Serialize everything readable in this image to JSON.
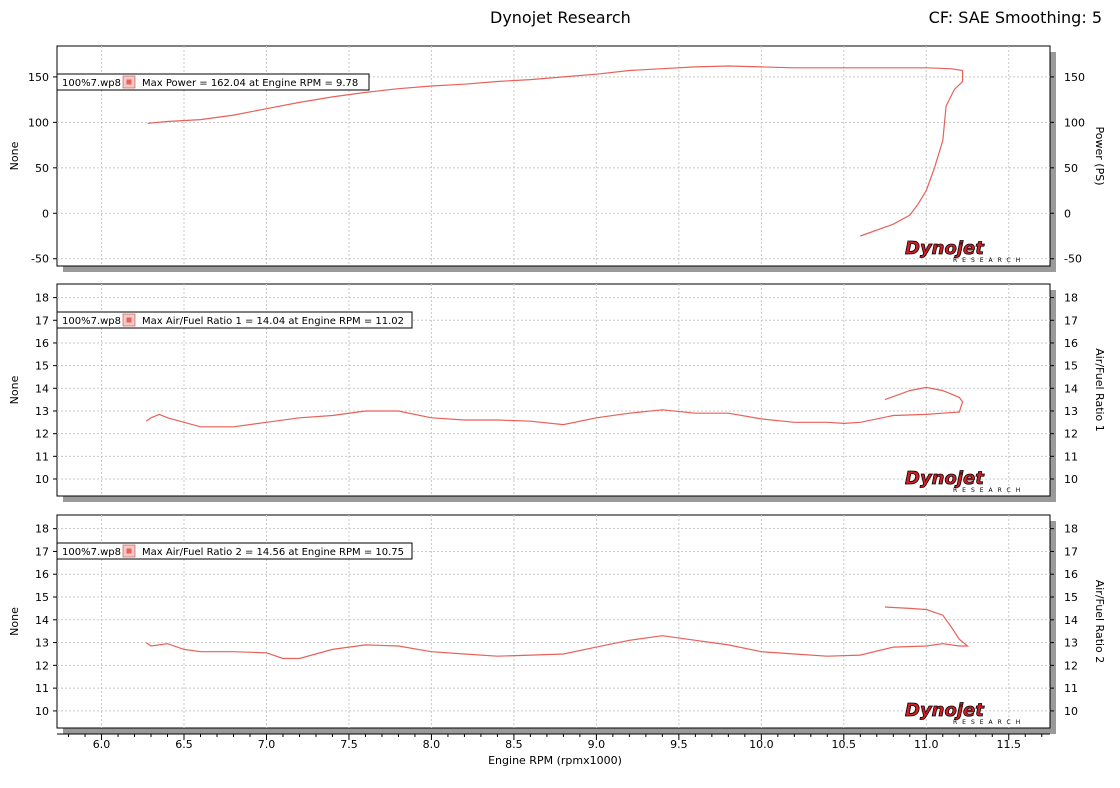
{
  "header": {
    "title": "Dynojet Research",
    "correction": "CF: SAE Smoothing: 5"
  },
  "colors": {
    "trace": "#e8615a",
    "grid": "#c8c8c8",
    "shadow": "#9a9a9a",
    "logo_red": "#d21f26"
  },
  "logo": {
    "word": "Dynojet",
    "sub": "RESEARCH"
  },
  "chart_data": [
    {
      "type": "line",
      "y_left_label": "None",
      "y_right_label": "Power (PS)",
      "ylim": [
        -58,
        184
      ],
      "yticks": [
        -50,
        0,
        50,
        100,
        150
      ],
      "xlim": [
        5.73,
        11.75
      ],
      "legend": {
        "file": "100%7.wp8",
        "text": "Max Power = 162.04 at Engine RPM = 9.78",
        "placement": "top-left"
      },
      "series": [
        {
          "x": [
            6.28,
            6.4,
            6.6,
            6.8,
            7.0,
            7.2,
            7.4,
            7.6,
            7.8,
            8.0,
            8.2,
            8.4,
            8.6,
            8.8,
            9.0,
            9.2,
            9.4,
            9.6,
            9.8,
            10.0,
            10.2,
            10.4,
            10.6,
            10.8,
            11.0,
            11.15,
            11.22,
            11.22,
            11.17,
            11.12,
            11.1,
            11.05,
            11.0,
            10.95,
            10.9,
            10.8,
            10.6
          ],
          "y": [
            99,
            101,
            103,
            108,
            115,
            122,
            128,
            133,
            137,
            140,
            142,
            145,
            147,
            150,
            153,
            157,
            159,
            161,
            162,
            161,
            160,
            160,
            160,
            160,
            160,
            159,
            157,
            145,
            136,
            118,
            80,
            50,
            25,
            10,
            -2,
            -12,
            -25
          ]
        }
      ]
    },
    {
      "type": "line",
      "y_left_label": "None",
      "y_right_label": "Air/Fuel Ratio 1",
      "ylim": [
        9.25,
        18.6
      ],
      "yticks": [
        10,
        11,
        12,
        13,
        14,
        15,
        16,
        17,
        18
      ],
      "xlim": [
        5.73,
        11.75
      ],
      "legend": {
        "file": "100%7.wp8",
        "text": "Max Air/Fuel Ratio 1 = 14.04 at Engine RPM = 11.02",
        "placement": "top-left"
      },
      "series": [
        {
          "x": [
            6.27,
            6.3,
            6.35,
            6.4,
            6.5,
            6.6,
            6.8,
            7.0,
            7.2,
            7.4,
            7.6,
            7.8,
            8.0,
            8.2,
            8.4,
            8.6,
            8.8,
            9.0,
            9.2,
            9.4,
            9.6,
            9.8,
            10.0,
            10.2,
            10.4,
            10.5,
            10.6,
            10.8,
            11.0,
            11.1,
            11.2,
            11.22,
            11.2,
            11.1,
            11.0,
            10.9,
            10.75
          ],
          "y": [
            12.55,
            12.7,
            12.85,
            12.7,
            12.5,
            12.3,
            12.3,
            12.5,
            12.7,
            12.8,
            13.0,
            13.0,
            12.7,
            12.6,
            12.6,
            12.55,
            12.4,
            12.7,
            12.9,
            13.05,
            12.9,
            12.9,
            12.65,
            12.5,
            12.5,
            12.45,
            12.5,
            12.8,
            12.85,
            12.9,
            12.95,
            13.4,
            13.6,
            13.9,
            14.04,
            13.9,
            13.5
          ]
        }
      ]
    },
    {
      "type": "line",
      "y_left_label": "None",
      "y_right_label": "Air/Fuel Ratio 2",
      "ylim": [
        9.25,
        18.6
      ],
      "yticks": [
        10,
        11,
        12,
        13,
        14,
        15,
        16,
        17,
        18
      ],
      "xlim": [
        5.73,
        11.75
      ],
      "legend": {
        "file": "100%7.wp8",
        "text": "Max Air/Fuel Ratio 2 = 14.56 at Engine RPM = 10.75",
        "placement": "top-left"
      },
      "series": [
        {
          "x": [
            6.27,
            6.3,
            6.4,
            6.5,
            6.6,
            6.8,
            7.0,
            7.1,
            7.2,
            7.4,
            7.6,
            7.8,
            8.0,
            8.2,
            8.4,
            8.6,
            8.8,
            9.0,
            9.2,
            9.4,
            9.6,
            9.8,
            10.0,
            10.2,
            10.4,
            10.6,
            10.8,
            11.0,
            11.1,
            11.2,
            11.25,
            11.2,
            11.15,
            11.1,
            11.0,
            10.9,
            10.75
          ],
          "y": [
            13.0,
            12.85,
            12.95,
            12.7,
            12.6,
            12.6,
            12.55,
            12.3,
            12.3,
            12.7,
            12.9,
            12.85,
            12.6,
            12.5,
            12.4,
            12.45,
            12.5,
            12.8,
            13.1,
            13.3,
            13.1,
            12.9,
            12.6,
            12.5,
            12.4,
            12.45,
            12.8,
            12.85,
            12.95,
            12.85,
            12.85,
            13.15,
            13.7,
            14.2,
            14.45,
            14.5,
            14.56
          ]
        }
      ]
    }
  ],
  "x_axis": {
    "label": "Engine RPM (rpmx1000)",
    "ticks": [
      6.0,
      6.5,
      7.0,
      7.5,
      8.0,
      8.5,
      9.0,
      9.5,
      10.0,
      10.5,
      11.0,
      11.5
    ]
  }
}
